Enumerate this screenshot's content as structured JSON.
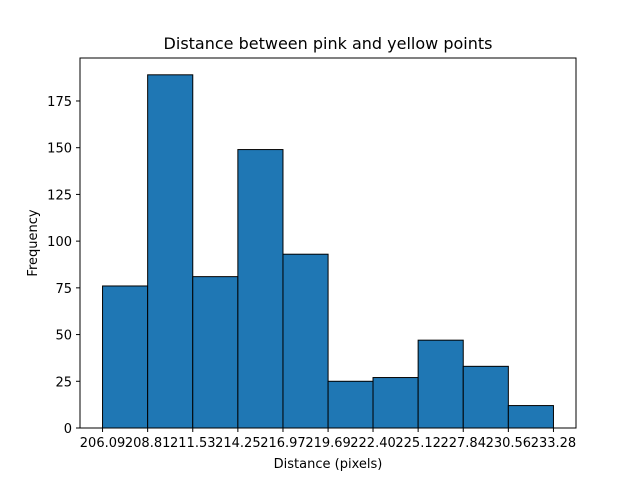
{
  "chart_data": {
    "type": "bar",
    "title": "Distance between pink and yellow points",
    "xlabel": "Distance (pixels)",
    "ylabel": "Frequency",
    "bin_edges": [
      206.09,
      208.81,
      211.53,
      214.25,
      216.97,
      219.69,
      222.4,
      225.12,
      227.84,
      230.56,
      233.28
    ],
    "x_tick_labels": [
      "206.09",
      "208.81",
      "211.53",
      "214.25",
      "216.97",
      "219.69",
      "222.40",
      "225.12",
      "227.84",
      "230.56",
      "233.28"
    ],
    "values": [
      76,
      189,
      81,
      149,
      93,
      25,
      27,
      47,
      33,
      12
    ],
    "ylim": [
      0,
      198
    ],
    "y_ticks": [
      0,
      25,
      50,
      75,
      100,
      125,
      150,
      175
    ],
    "grid": false,
    "colors": {
      "bar_fill": "#1f77b4",
      "bar_edge": "#000000"
    }
  }
}
